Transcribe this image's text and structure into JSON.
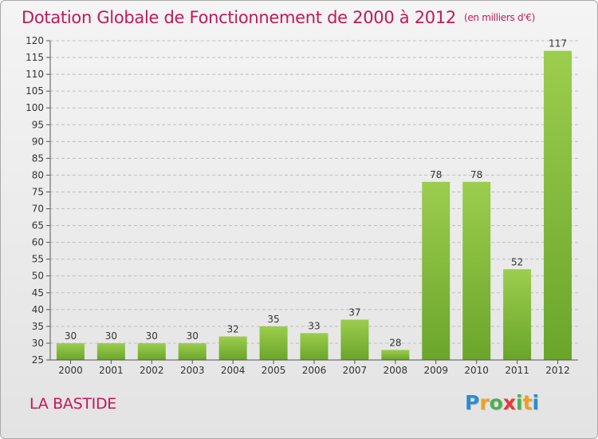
{
  "title": "Dotation Globale de Fonctionnement de 2000 à 2012",
  "unit": "(en milliers d'€)",
  "location": "LA BASTIDE",
  "logo": {
    "letters": [
      "P",
      "r",
      "o",
      "x",
      "i",
      "t",
      "i"
    ],
    "colors": [
      "#2b8ccf",
      "#f0a020",
      "#4caf50",
      "#e53935",
      "#4caf50",
      "#f0a020",
      "#2b8ccf"
    ]
  },
  "colors": {
    "bar_top": "#9ccd4e",
    "bar_bottom": "#6aa52a",
    "grid": "#bfbfbf",
    "title": "#c2185b"
  },
  "chart_data": {
    "type": "bar",
    "categories": [
      "2000",
      "2001",
      "2002",
      "2003",
      "2004",
      "2005",
      "2006",
      "2007",
      "2008",
      "2009",
      "2010",
      "2011",
      "2012"
    ],
    "values": [
      30,
      30,
      30,
      30,
      32,
      35,
      33,
      37,
      28,
      78,
      78,
      52,
      117
    ],
    "ylim": [
      25,
      120
    ],
    "ytick_step": 5,
    "grid": true
  }
}
